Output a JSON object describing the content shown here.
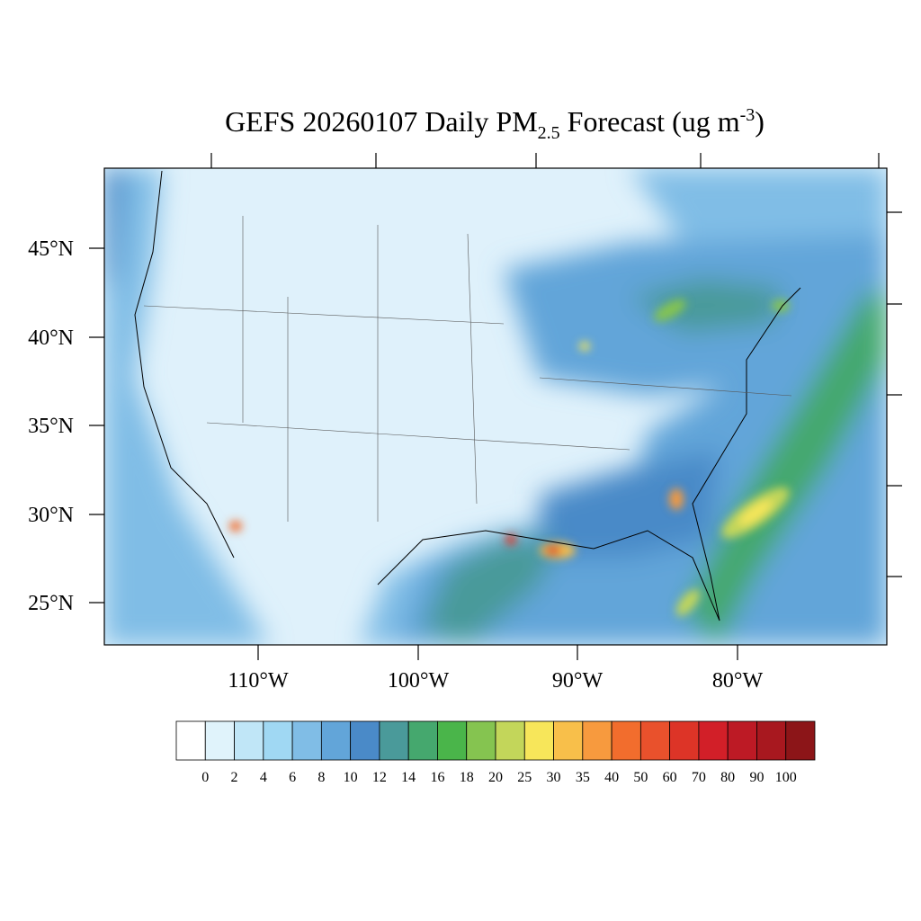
{
  "title": {
    "main": "GEFS 20260107 Daily PM",
    "sub": "2.5",
    "after": " Forecast (ug m",
    "sup": "-3",
    "end": ")"
  },
  "lat_labels": [
    "45°N",
    "40°N",
    "35°N",
    "30°N",
    "25°N"
  ],
  "lon_labels": [
    "110°W",
    "100°W",
    "90°W",
    "80°W"
  ],
  "colorbar": {
    "levels": [
      0,
      2,
      4,
      6,
      8,
      10,
      12,
      14,
      16,
      18,
      20,
      25,
      30,
      35,
      40,
      50,
      60,
      70,
      80,
      90,
      100
    ],
    "colors": [
      "#ffffff",
      "#e0f3fb",
      "#c0e6f7",
      "#a0d8f3",
      "#80bde6",
      "#62a5d9",
      "#4a8ac8",
      "#4a9a9a",
      "#45a86e",
      "#4ab54a",
      "#85c450",
      "#c3d65a",
      "#f7e65a",
      "#f8bf4a",
      "#f79a3e",
      "#f26d2d",
      "#e9512c",
      "#dd3427",
      "#d21f28",
      "#bd1a25",
      "#a8181f",
      "#8c1518"
    ]
  }
}
